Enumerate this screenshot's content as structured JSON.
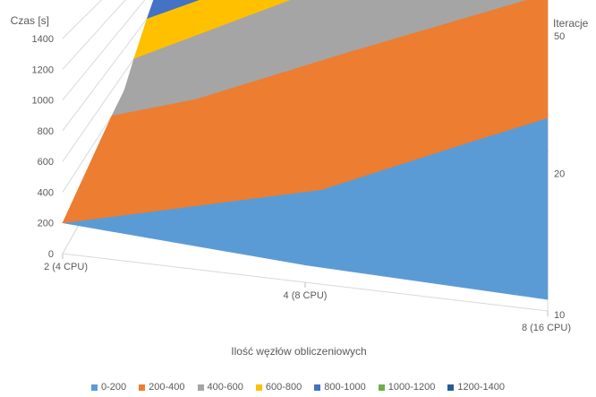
{
  "chart_data": {
    "type": "surface",
    "zlabel": "Czas [s]",
    "xlabel": "Ilość węzłów obliczeniowych",
    "ylabel": "Iteracje",
    "x_categories": [
      "2 (4 CPU)",
      "4 (8 CPU)",
      "8 (16 CPU)"
    ],
    "y_categories": [
      "10",
      "20",
      "50"
    ],
    "z_ticks": [
      "0",
      "200",
      "400",
      "600",
      "800",
      "1000",
      "1200",
      "1400"
    ],
    "zlim": [
      0,
      1400
    ],
    "values": [
      {
        "nodes": "2 (4 CPU)",
        "iterations": "10",
        "value": 200
      },
      {
        "nodes": "2 (4 CPU)",
        "iterations": "20",
        "value": 450
      },
      {
        "nodes": "2 (4 CPU)",
        "iterations": "50",
        "value": 1400
      },
      {
        "nodes": "4 (8 CPU)",
        "iterations": "10",
        "value": 100
      },
      {
        "nodes": "4 (8 CPU)",
        "iterations": "20",
        "value": 300
      },
      {
        "nodes": "4 (8 CPU)",
        "iterations": "50",
        "value": 500
      },
      {
        "nodes": "8 (16 CPU)",
        "iterations": "10",
        "value": 60
      },
      {
        "nodes": "8 (16 CPU)",
        "iterations": "20",
        "value": 150
      },
      {
        "nodes": "8 (16 CPU)",
        "iterations": "50",
        "value": 400
      }
    ],
    "bands": [
      {
        "label": "0-200",
        "color": "#5b9bd5"
      },
      {
        "label": "200-400",
        "color": "#ed7d31"
      },
      {
        "label": "400-600",
        "color": "#a5a5a5"
      },
      {
        "label": "600-800",
        "color": "#ffc000"
      },
      {
        "label": "800-1000",
        "color": "#4472c4"
      },
      {
        "label": "1000-1200",
        "color": "#70ad47"
      },
      {
        "label": "1200-1400",
        "color": "#255e91"
      }
    ],
    "legend_position": "bottom",
    "grid": true
  }
}
